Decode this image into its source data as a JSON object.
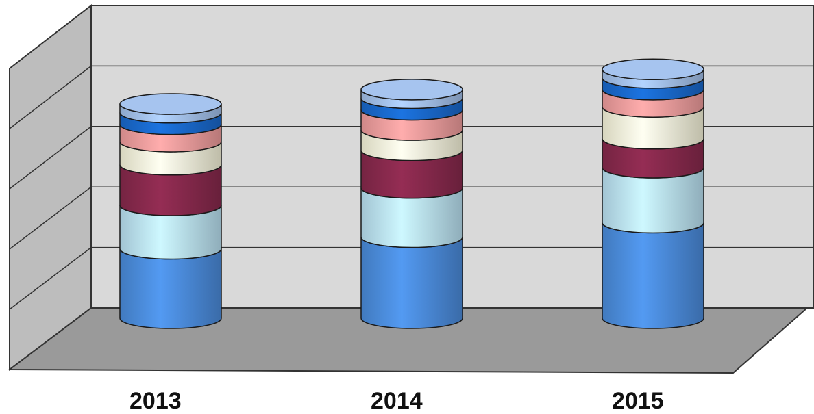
{
  "chart_data": {
    "type": "bar",
    "stacked": true,
    "style": "3d-cylinder",
    "categories": [
      "2013",
      "2014",
      "2015"
    ],
    "series": [
      {
        "color": "#4d8fe0",
        "values": [
          24,
          28,
          33
        ]
      },
      {
        "color": "#bfe6f8",
        "values": [
          15,
          17,
          19
        ]
      },
      {
        "color": "#8a2a4e",
        "values": [
          14,
          13,
          10
        ]
      },
      {
        "color": "#fdfbe0",
        "values": [
          8,
          7,
          11
        ]
      },
      {
        "color": "#f4a0a0",
        "values": [
          6,
          7,
          6
        ]
      },
      {
        "color": "#1a6bd0",
        "values": [
          4,
          4,
          4
        ]
      },
      {
        "color": "#a6c4ef",
        "values": [
          3,
          3,
          3
        ]
      }
    ],
    "ylim": [
      0,
      100
    ],
    "grid": true,
    "legend": "none",
    "title": "",
    "xlabel": "",
    "ylabel": ""
  }
}
